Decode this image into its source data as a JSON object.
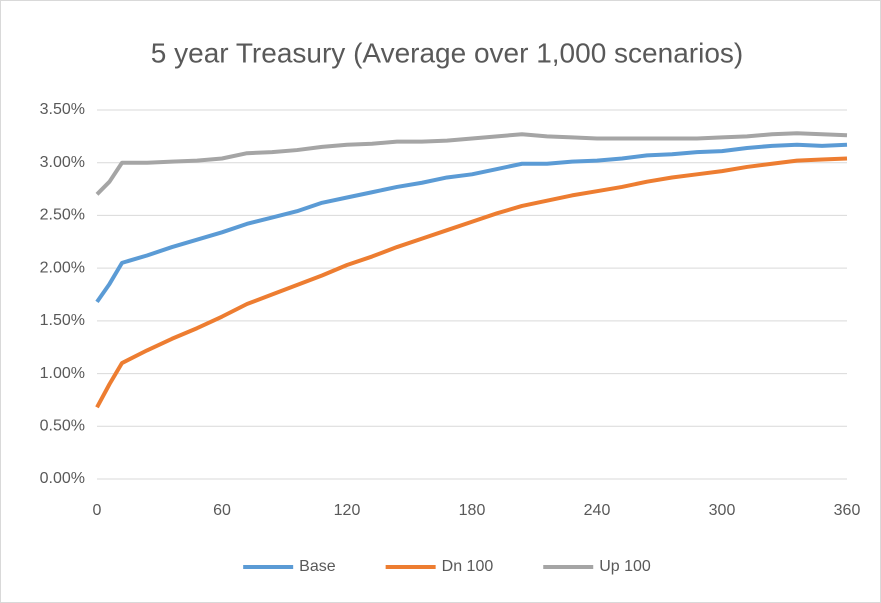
{
  "chart_data": {
    "type": "line",
    "title": "5 year Treasury (Average over 1,000 scenarios)",
    "x": [
      0,
      6,
      12,
      24,
      36,
      48,
      60,
      72,
      84,
      96,
      108,
      120,
      132,
      144,
      156,
      168,
      180,
      192,
      204,
      216,
      228,
      240,
      252,
      264,
      276,
      288,
      300,
      312,
      324,
      336,
      348,
      360
    ],
    "series": [
      {
        "name": "Base",
        "color": "#5b9bd5",
        "values": [
          1.68,
          1.85,
          2.05,
          2.12,
          2.2,
          2.27,
          2.34,
          2.42,
          2.48,
          2.54,
          2.62,
          2.67,
          2.72,
          2.77,
          2.81,
          2.86,
          2.89,
          2.94,
          2.99,
          2.99,
          3.01,
          3.02,
          3.04,
          3.07,
          3.08,
          3.1,
          3.11,
          3.14,
          3.16,
          3.17,
          3.16,
          3.17
        ]
      },
      {
        "name": "Dn 100",
        "color": "#ed7d31",
        "values": [
          0.68,
          0.9,
          1.1,
          1.22,
          1.33,
          1.43,
          1.54,
          1.66,
          1.75,
          1.84,
          1.93,
          2.03,
          2.11,
          2.2,
          2.28,
          2.36,
          2.44,
          2.52,
          2.59,
          2.64,
          2.69,
          2.73,
          2.77,
          2.82,
          2.86,
          2.89,
          2.92,
          2.96,
          2.99,
          3.02,
          3.03,
          3.04
        ]
      },
      {
        "name": "Up 100",
        "color": "#a5a5a5",
        "values": [
          2.7,
          2.82,
          3.0,
          3.0,
          3.01,
          3.02,
          3.04,
          3.09,
          3.1,
          3.12,
          3.15,
          3.17,
          3.18,
          3.2,
          3.2,
          3.21,
          3.23,
          3.25,
          3.27,
          3.25,
          3.24,
          3.23,
          3.23,
          3.23,
          3.23,
          3.23,
          3.24,
          3.25,
          3.27,
          3.28,
          3.27,
          3.26
        ]
      }
    ],
    "xlim": [
      0,
      360
    ],
    "xticks": [
      0,
      60,
      120,
      180,
      240,
      300,
      360
    ],
    "ylim": [
      0,
      3.5
    ],
    "yticks": [
      {
        "value": 0,
        "label": "0.00%"
      },
      {
        "value": 0.5,
        "label": "0.50%"
      },
      {
        "value": 1,
        "label": "1.00%"
      },
      {
        "value": 1.5,
        "label": "1.50%"
      },
      {
        "value": 2,
        "label": "2.00%"
      },
      {
        "value": 2.5,
        "label": "2.50%"
      },
      {
        "value": 3,
        "label": "3.00%"
      },
      {
        "value": 3.5,
        "label": "3.50%"
      }
    ],
    "grid": true,
    "legend": "bottom"
  }
}
